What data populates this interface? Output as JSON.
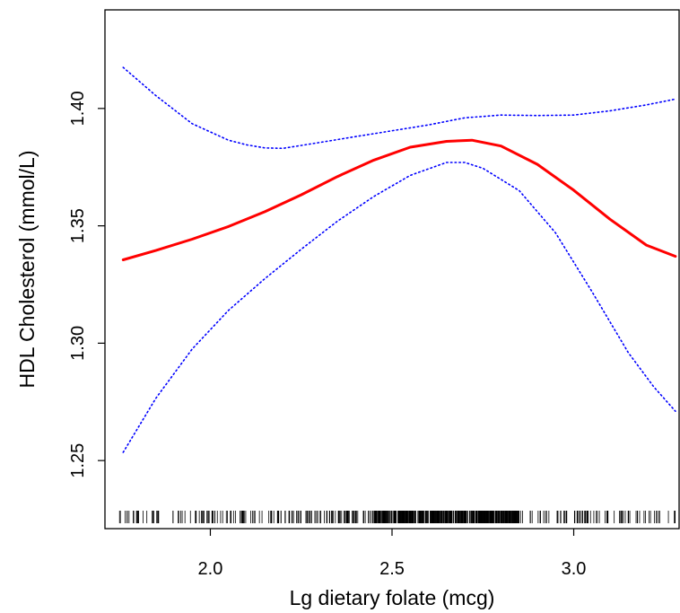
{
  "chart_data": {
    "type": "line",
    "title": "",
    "xlabel": "Lg dietary folate (mcg)",
    "ylabel": "HDL Cholesterol (mmol/L)",
    "xlim": [
      1.71,
      3.29
    ],
    "ylim": [
      1.221,
      1.442
    ],
    "x_ticks": [
      {
        "value": 2.0,
        "label": "2.0"
      },
      {
        "value": 2.5,
        "label": "2.5"
      },
      {
        "value": 3.0,
        "label": "3.0"
      }
    ],
    "y_ticks": [
      {
        "value": 1.25,
        "label": "1.25"
      },
      {
        "value": 1.3,
        "label": "1.30"
      },
      {
        "value": 1.35,
        "label": "1.35"
      },
      {
        "value": 1.4,
        "label": "1.40"
      }
    ],
    "grid": false,
    "legend": "none",
    "series": [
      {
        "role": "estimate",
        "color": "#ff0000",
        "style": "solid",
        "x": [
          1.76,
          1.85,
          1.95,
          2.05,
          2.15,
          2.25,
          2.35,
          2.45,
          2.55,
          2.65,
          2.72,
          2.8,
          2.9,
          3.0,
          3.1,
          3.2,
          3.28
        ],
        "y": [
          1.3355,
          1.3395,
          1.3443,
          1.3497,
          1.356,
          1.3632,
          1.371,
          1.378,
          1.3835,
          1.386,
          1.3865,
          1.384,
          1.3762,
          1.3652,
          1.3528,
          1.3418,
          1.337
        ]
      },
      {
        "role": "upper_ci",
        "color": "#0000ff",
        "style": "dotted",
        "x": [
          1.76,
          1.85,
          1.95,
          2.05,
          2.1,
          2.15,
          2.2,
          2.3,
          2.4,
          2.5,
          2.6,
          2.7,
          2.8,
          2.9,
          3.0,
          3.1,
          3.2,
          3.28
        ],
        "y": [
          1.4175,
          1.4055,
          1.3935,
          1.3865,
          1.3845,
          1.3832,
          1.383,
          1.3855,
          1.388,
          1.3905,
          1.393,
          1.396,
          1.3972,
          1.397,
          1.3972,
          1.399,
          1.4015,
          1.404
        ]
      },
      {
        "role": "lower_ci",
        "color": "#0000ff",
        "style": "dotted",
        "x": [
          1.76,
          1.85,
          1.95,
          2.05,
          2.15,
          2.25,
          2.35,
          2.45,
          2.55,
          2.65,
          2.7,
          2.75,
          2.85,
          2.95,
          3.05,
          3.15,
          3.22,
          3.28
        ],
        "y": [
          1.2535,
          1.2765,
          1.2975,
          1.314,
          1.3275,
          1.34,
          1.352,
          1.3625,
          1.3715,
          1.377,
          1.377,
          1.3745,
          1.365,
          1.347,
          1.322,
          1.296,
          1.2815,
          1.271
        ]
      }
    ],
    "rug": {
      "color": "#000000",
      "sparse_ranges": [
        [
          1.75,
          1.95
        ],
        [
          3.05,
          3.28
        ]
      ],
      "dense_range": [
        1.95,
        3.05
      ],
      "peak_density_range": [
        2.45,
        2.85
      ]
    }
  }
}
